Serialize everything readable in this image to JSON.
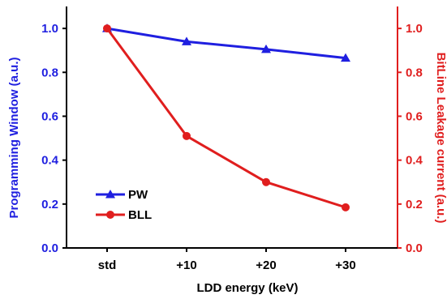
{
  "colors": {
    "left_axis": "#1f1fe0",
    "right_axis": "#e01e1e",
    "axis": "#000000"
  },
  "chart_data": {
    "type": "line",
    "title": "",
    "xlabel": "LDD energy (keV)",
    "ylabel_left": "Programming Window (a.u.)",
    "ylabel_right": "BitLine Leakage current (a.u.)",
    "categories": [
      "std",
      "+10",
      "+20",
      "+30"
    ],
    "ylim_left": [
      0.0,
      1.1
    ],
    "ylim_right": [
      0.0,
      1.1
    ],
    "yticks_left": [
      "0.0",
      "0.2",
      "0.4",
      "0.6",
      "0.8",
      "1.0"
    ],
    "yticks_right": [
      "0.0",
      "0.2",
      "0.4",
      "0.6",
      "0.8",
      "1.0"
    ],
    "grid": false,
    "legend_position": "lower-left",
    "series": [
      {
        "name": "PW",
        "axis": "left",
        "marker": "triangle",
        "color": "#1f1fe0",
        "values": [
          1.0,
          0.94,
          0.905,
          0.865
        ]
      },
      {
        "name": "BLL",
        "axis": "right",
        "marker": "circle",
        "color": "#e01e1e",
        "values": [
          1.0,
          0.51,
          0.3,
          0.185
        ]
      }
    ]
  }
}
